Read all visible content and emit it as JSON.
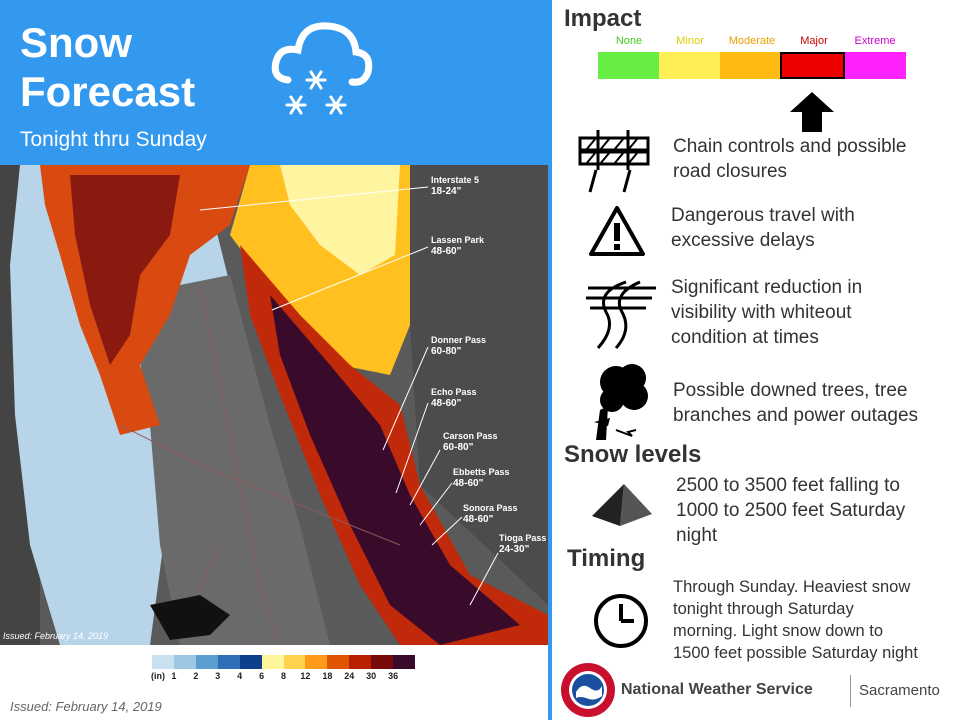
{
  "header": {
    "title_line1": "Snow",
    "title_line2": "Forecast",
    "subtitle": "Tonight thru Sunday"
  },
  "map": {
    "issued": "Issued: February 14, 2019",
    "passes": [
      {
        "name": "Interstate 5",
        "value": "18-24\""
      },
      {
        "name": "Lassen Park",
        "value": "48-60\""
      },
      {
        "name": "Donner Pass",
        "value": "60-80\""
      },
      {
        "name": "Echo Pass",
        "value": "48-60\""
      },
      {
        "name": "Carson Pass",
        "value": "60-80\""
      },
      {
        "name": "Ebbetts Pass",
        "value": "48-60\""
      },
      {
        "name": "Sonora Pass",
        "value": "48-60\""
      },
      {
        "name": "Tioga Pass",
        "value": "24-30\""
      }
    ]
  },
  "legend": {
    "unit": "(in)",
    "ticks": [
      "1",
      "2",
      "3",
      "4",
      "6",
      "8",
      "12",
      "18",
      "24",
      "30",
      "36"
    ],
    "colors": [
      "#c8e0f0",
      "#9cc8e6",
      "#5c9dd0",
      "#2f6fb5",
      "#0d3f8a",
      "#fff59a",
      "#ffd34d",
      "#ff9a1a",
      "#e05500",
      "#b82000",
      "#7a0a0a",
      "#3a0a2a"
    ]
  },
  "issued_bottom": "Issued: February 14, 2019",
  "impact": {
    "heading": "Impact",
    "levels": [
      {
        "label": "None",
        "color": "#66ee44",
        "label_color": "#44cc22"
      },
      {
        "label": "Minor",
        "color": "#ffee55",
        "label_color": "#ddcc00"
      },
      {
        "label": "Moderate",
        "color": "#ffbb11",
        "label_color": "#e8a000"
      },
      {
        "label": "Major",
        "color": "#ee0000",
        "label_color": "#cc0000"
      },
      {
        "label": "Extreme",
        "color": "#ff22ff",
        "label_color": "#cc00cc"
      }
    ],
    "selected": "Major",
    "items": [
      {
        "icon": "road-closure-icon",
        "text_line1": "Chain controls and possible",
        "text_line2": "road closures"
      },
      {
        "icon": "warning-icon",
        "text_line1": "Dangerous travel with",
        "text_line2": "excessive delays"
      },
      {
        "icon": "whiteout-icon",
        "text_line1": "Significant reduction in",
        "text_line2": "visibility with whiteout",
        "text_line3": "condition at times"
      },
      {
        "icon": "downed-tree-icon",
        "text_line1": "Possible downed trees, tree",
        "text_line2": "branches and power outages"
      }
    ]
  },
  "snow_levels": {
    "heading": "Snow levels",
    "text_line1": "2500 to 3500 feet falling to",
    "text_line2": "1000 to 2500 feet Saturday",
    "text_line3": "night"
  },
  "timing": {
    "heading": "Timing",
    "text_line1": "Through Sunday. Heaviest snow",
    "text_line2": "tonight through Saturday",
    "text_line3": "morning. Light snow down to",
    "text_line4": "1500 feet possible Saturday night"
  },
  "footer": {
    "agency": "National Weather Service",
    "office": "Sacramento"
  }
}
